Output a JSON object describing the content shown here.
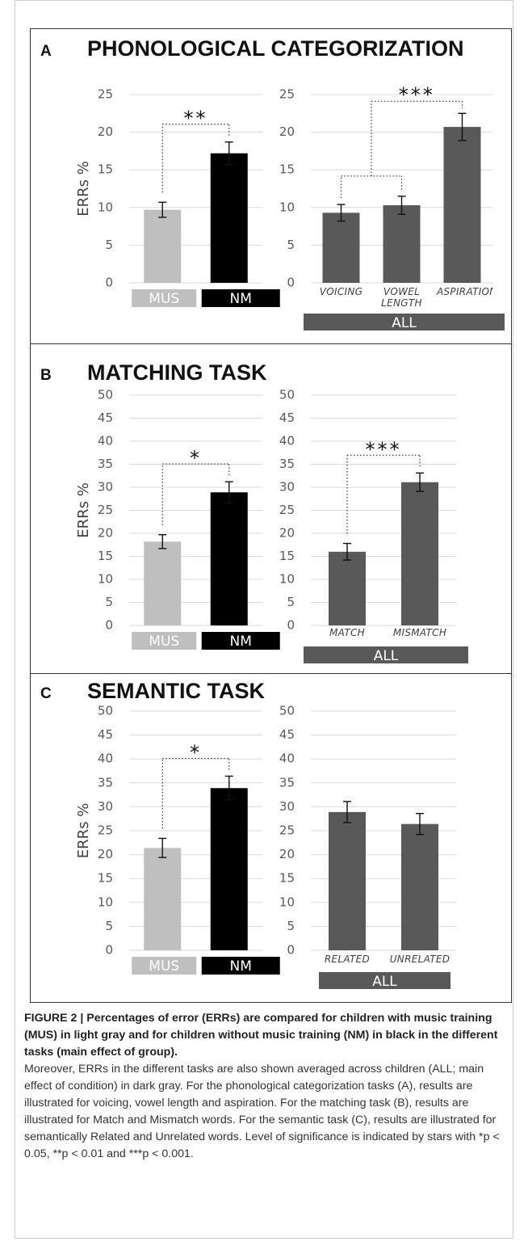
{
  "chart_data": [
    {
      "type": "bar",
      "panel": "A",
      "title": "PHONOLOGICAL CATEGORIZATION",
      "ylabel": "ERRs %",
      "categories": [
        "MUS",
        "NM"
      ],
      "values": [
        9.7,
        17.2
      ],
      "errors": [
        1.0,
        1.5
      ],
      "colors": [
        "#bfbfbf",
        "#000000"
      ],
      "ylim": [
        0,
        25
      ],
      "yticks": [
        0,
        5,
        10,
        15,
        20,
        25
      ],
      "grid": true,
      "significance": "**"
    },
    {
      "type": "bar",
      "categories": [
        "VOICING",
        "VOWEL LENGTH",
        "ASPIRATION"
      ],
      "values": [
        9.3,
        10.3,
        20.7
      ],
      "errors": [
        1.1,
        1.2,
        1.8
      ],
      "color": "#595959",
      "group_label": "ALL",
      "ylim": [
        0,
        25
      ],
      "yticks": [
        0,
        5,
        10,
        15,
        20,
        25
      ],
      "grid": true,
      "significance": "***"
    },
    {
      "type": "bar",
      "panel": "B",
      "title": "MATCHING TASK",
      "ylabel": "ERRs %",
      "categories": [
        "MUS",
        "NM"
      ],
      "values": [
        18.2,
        28.9
      ],
      "errors": [
        1.5,
        2.3
      ],
      "colors": [
        "#bfbfbf",
        "#000000"
      ],
      "ylim": [
        0,
        50
      ],
      "yticks": [
        0,
        5,
        10,
        15,
        20,
        25,
        30,
        35,
        40,
        45,
        50
      ],
      "grid": true,
      "significance": "*"
    },
    {
      "type": "bar",
      "categories": [
        "MATCH",
        "MISMATCH"
      ],
      "values": [
        16.0,
        31.1
      ],
      "errors": [
        1.8,
        2.0
      ],
      "color": "#595959",
      "group_label": "ALL",
      "ylim": [
        0,
        50
      ],
      "yticks": [
        0,
        5,
        10,
        15,
        20,
        25,
        30,
        35,
        40,
        45,
        50
      ],
      "grid": true,
      "significance": "***"
    },
    {
      "type": "bar",
      "panel": "C",
      "title": "SEMANTIC TASK",
      "ylabel": "ERRs %",
      "categories": [
        "MUS",
        "NM"
      ],
      "values": [
        21.4,
        33.9
      ],
      "errors": [
        2.0,
        2.5
      ],
      "colors": [
        "#bfbfbf",
        "#000000"
      ],
      "ylim": [
        0,
        50
      ],
      "yticks": [
        0,
        5,
        10,
        15,
        20,
        25,
        30,
        35,
        40,
        45,
        50
      ],
      "grid": true,
      "significance": "*"
    },
    {
      "type": "bar",
      "categories": [
        "RELATED",
        "UNRELATED"
      ],
      "values": [
        28.9,
        26.4
      ],
      "errors": [
        2.2,
        2.2
      ],
      "color": "#595959",
      "group_label": "ALL",
      "ylim": [
        0,
        50
      ],
      "yticks": [
        0,
        5,
        10,
        15,
        20,
        25,
        30,
        35,
        40,
        45,
        50
      ],
      "grid": true
    }
  ],
  "caption": {
    "title": "FIGURE 2 | Percentages of error (ERRs) are compared for children with music training (MUS) in light gray and for children without music training (NM) in black in the different tasks (main effect of group).",
    "body": "Moreover, ERRs in the different tasks are also shown averaged across children (ALL; main effect of condition) in dark gray. For the phonological categorization tasks (A), results are illustrated for voicing, vowel length and aspiration. For the matching task (B), results are illustrated for Match and Mismatch words. For the semantic task (C), results are illustrated for semantically Related and Unrelated words. Level of significance is indicated by stars with *p < 0.05, **p < 0.01 and ***p < 0.001."
  }
}
